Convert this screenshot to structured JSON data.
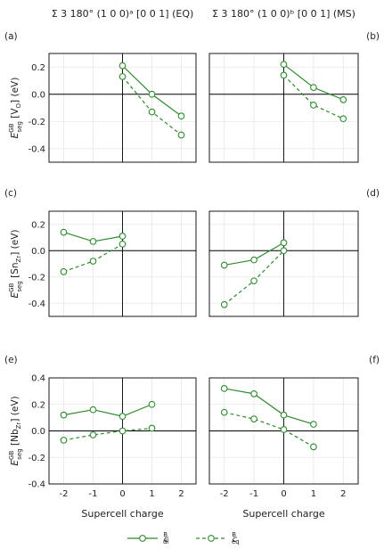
{
  "column_titles": [
    "Σ 3 180° (1 0 0)ᵃ [0 0 1] (EQ)",
    "Σ 3 180° (1 0 0)ᵇ [0 0 1] (MS)"
  ],
  "xlabel": "Supercell charge",
  "legend": [
    {
      "name": "c_dl^B",
      "style": "solid"
    },
    {
      "name": "c_eq^B",
      "style": "dashed"
    }
  ],
  "colors": {
    "series": "#2e8b2e",
    "axes": "#000000",
    "grid": "#e6e6e6"
  },
  "chart_data": [
    {
      "type": "line",
      "panel_label": "(a)",
      "ylabel": "E_seg^GB [V_O] (eV)",
      "xlim": [
        -2.5,
        2.5
      ],
      "ylim": [
        -0.5,
        0.3
      ],
      "xticks": [
        "-2",
        "-1",
        "0",
        "1",
        "2"
      ],
      "yticks": [
        "0.2",
        "0.0",
        "-0.2",
        "-0.4"
      ],
      "series": [
        {
          "name": "c_dl^B",
          "x": [
            0,
            1,
            2
          ],
          "y": [
            0.21,
            0.0,
            -0.16
          ]
        },
        {
          "name": "c_eq^B",
          "x": [
            0,
            1,
            2
          ],
          "y": [
            0.13,
            -0.13,
            -0.3
          ]
        }
      ]
    },
    {
      "type": "line",
      "panel_label": "(b)",
      "ylabel": "",
      "xlim": [
        -2.5,
        2.5
      ],
      "ylim": [
        -0.5,
        0.3
      ],
      "xticks": [
        "-2",
        "-1",
        "0",
        "1",
        "2"
      ],
      "yticks": [],
      "series": [
        {
          "name": "c_dl^B",
          "x": [
            0,
            1,
            2
          ],
          "y": [
            0.22,
            0.05,
            -0.04
          ]
        },
        {
          "name": "c_eq^B",
          "x": [
            0,
            1,
            2
          ],
          "y": [
            0.14,
            -0.08,
            -0.18
          ]
        }
      ]
    },
    {
      "type": "line",
      "panel_label": "(c)",
      "ylabel": "E_seg^GB [Sn_Zr] (eV)",
      "xlim": [
        -2.5,
        2.5
      ],
      "ylim": [
        -0.5,
        0.3
      ],
      "xticks": [
        "-2",
        "-1",
        "0",
        "1",
        "2"
      ],
      "yticks": [
        "0.2",
        "0.0",
        "-0.2",
        "-0.4"
      ],
      "series": [
        {
          "name": "c_dl^B",
          "x": [
            -2,
            -1,
            0
          ],
          "y": [
            0.14,
            0.07,
            0.11
          ]
        },
        {
          "name": "c_eq^B",
          "x": [
            -2,
            -1,
            0
          ],
          "y": [
            -0.16,
            -0.08,
            0.05
          ]
        }
      ]
    },
    {
      "type": "line",
      "panel_label": "(d)",
      "ylabel": "",
      "xlim": [
        -2.5,
        2.5
      ],
      "ylim": [
        -0.5,
        0.3
      ],
      "xticks": [
        "-2",
        "-1",
        "0",
        "1",
        "2"
      ],
      "yticks": [],
      "series": [
        {
          "name": "c_dl^B",
          "x": [
            -2,
            -1,
            0
          ],
          "y": [
            -0.11,
            -0.07,
            0.06
          ]
        },
        {
          "name": "c_eq^B",
          "x": [
            -2,
            -1,
            0
          ],
          "y": [
            -0.41,
            -0.23,
            0.0
          ]
        }
      ]
    },
    {
      "type": "line",
      "panel_label": "(e)",
      "ylabel": "E_seg^GB [Nb_Zr] (eV)",
      "xlim": [
        -2.5,
        2.5
      ],
      "ylim": [
        -0.4,
        0.4
      ],
      "xticks": [
        "-2",
        "-1",
        "0",
        "1",
        "2"
      ],
      "yticks": [
        "0.4",
        "0.2",
        "0.0",
        "-0.2",
        "-0.4"
      ],
      "series": [
        {
          "name": "c_dl^B",
          "x": [
            -2,
            -1,
            0,
            1
          ],
          "y": [
            0.12,
            0.16,
            0.11,
            0.2
          ]
        },
        {
          "name": "c_eq^B",
          "x": [
            -2,
            -1,
            0,
            1
          ],
          "y": [
            -0.07,
            -0.03,
            0.0,
            0.02
          ]
        }
      ]
    },
    {
      "type": "line",
      "panel_label": "(f)",
      "ylabel": "",
      "xlim": [
        -2.5,
        2.5
      ],
      "ylim": [
        -0.4,
        0.4
      ],
      "xticks": [
        "-2",
        "-1",
        "0",
        "1",
        "2"
      ],
      "yticks": [],
      "series": [
        {
          "name": "c_dl^B",
          "x": [
            -2,
            -1,
            0,
            1
          ],
          "y": [
            0.32,
            0.28,
            0.12,
            0.05
          ]
        },
        {
          "name": "c_eq^B",
          "x": [
            -2,
            -1,
            0,
            1
          ],
          "y": [
            0.14,
            0.09,
            0.01,
            -0.12
          ]
        }
      ]
    }
  ]
}
